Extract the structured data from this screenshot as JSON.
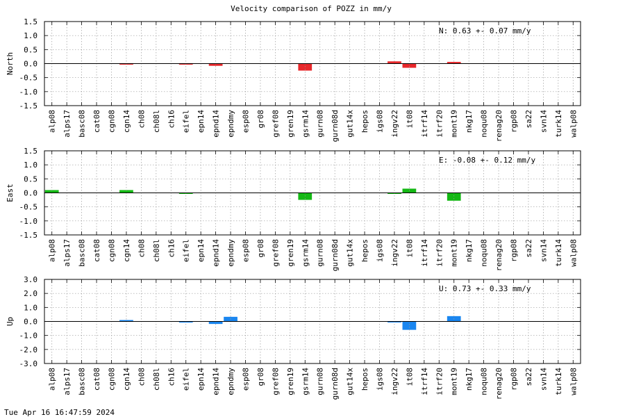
{
  "title": "Velocity comparison of POZZ in mm/y",
  "footer_timestamp": "Tue Apr 16 16:47:59 2024",
  "chart_data": [
    {
      "type": "bar",
      "ylabel": "North",
      "ylim": [
        -1.5,
        1.5
      ],
      "yticks": [
        "1.5",
        "1.0",
        "0.5",
        "0.0",
        "-0.5",
        "-1.0",
        "-1.5"
      ],
      "annotation": "N:   0.63 +-  0.07 mm/y",
      "color": "#e8282b",
      "grid": true,
      "categories": [
        "alp08",
        "alps17",
        "basc08",
        "cat08",
        "cgn08",
        "cgn14",
        "ch08",
        "ch08l",
        "ch16",
        "eifel",
        "epn14",
        "epnd14",
        "epndmy",
        "esp08",
        "gr08",
        "gref08",
        "gren19",
        "gsrm14",
        "gurn08",
        "gurn08d",
        "gut14x",
        "hepos",
        "igs08",
        "ingv22",
        "it08",
        "itrf14",
        "itrf20",
        "mont19",
        "nkg17",
        "noqu08",
        "renag20",
        "rgp08",
        "sa22",
        "svn14",
        "turk14",
        "walp08"
      ],
      "values": [
        0,
        0,
        0,
        0,
        0,
        -0.02,
        0,
        0,
        0,
        -0.03,
        0,
        -0.08,
        0,
        0,
        0,
        0,
        0,
        -0.25,
        0,
        0,
        0,
        0,
        0,
        0.08,
        -0.15,
        0,
        0,
        0.06,
        0,
        0,
        0,
        0,
        0,
        0,
        0,
        0
      ]
    },
    {
      "type": "bar",
      "ylabel": "East",
      "ylim": [
        -1.5,
        1.5
      ],
      "yticks": [
        "1.5",
        "1.0",
        "0.5",
        "0.0",
        "-0.5",
        "-1.0",
        "-1.5"
      ],
      "annotation": "E:  -0.08 +-  0.12 mm/y",
      "color": "#14b814",
      "grid": true,
      "categories": [
        "alp08",
        "alps17",
        "basc08",
        "cat08",
        "cgn08",
        "cgn14",
        "ch08",
        "ch08l",
        "ch16",
        "eifel",
        "epn14",
        "epnd14",
        "epndmy",
        "esp08",
        "gr08",
        "gref08",
        "gren19",
        "gsrm14",
        "gurn08",
        "gurn08d",
        "gut14x",
        "hepos",
        "igs08",
        "ingv22",
        "it08",
        "itrf14",
        "itrf20",
        "mont19",
        "nkg17",
        "noqu08",
        "renag20",
        "rgp08",
        "sa22",
        "svn14",
        "turk14",
        "walp08"
      ],
      "values": [
        0.1,
        0,
        0,
        0,
        0,
        0.1,
        0,
        0,
        0,
        -0.03,
        0,
        0,
        0,
        0,
        0,
        0,
        0,
        -0.25,
        0,
        0,
        0,
        0,
        0,
        -0.03,
        0.15,
        0,
        0,
        -0.28,
        0,
        0,
        0,
        0,
        0,
        0,
        0,
        0
      ]
    },
    {
      "type": "bar",
      "ylabel": "Up",
      "ylim": [
        -3.0,
        3.0
      ],
      "yticks": [
        "3.0",
        "2.0",
        "1.0",
        "0.0",
        "-1.0",
        "-2.0",
        "-3.0"
      ],
      "annotation": "U:   0.73 +-  0.33 mm/y",
      "color": "#1a86f0",
      "grid": true,
      "categories": [
        "alp08",
        "alps17",
        "basc08",
        "cat08",
        "cgn08",
        "cgn14",
        "ch08",
        "ch08l",
        "ch16",
        "eifel",
        "epn14",
        "epnd14",
        "epndmy",
        "esp08",
        "gr08",
        "gref08",
        "gren19",
        "gsrm14",
        "gurn08",
        "gurn08d",
        "gut14x",
        "hepos",
        "igs08",
        "ingv22",
        "it08",
        "itrf14",
        "itrf20",
        "mont19",
        "nkg17",
        "noqu08",
        "renag20",
        "rgp08",
        "sa22",
        "svn14",
        "turk14",
        "walp08"
      ],
      "values": [
        0,
        0,
        0,
        0,
        0,
        0.1,
        0,
        0,
        0,
        -0.08,
        0,
        -0.18,
        0.33,
        0,
        0,
        0,
        0,
        0,
        0,
        0,
        0,
        0,
        0,
        -0.05,
        -0.6,
        0,
        0,
        0.38,
        0,
        0,
        0,
        0,
        0,
        0,
        0,
        0
      ]
    }
  ]
}
